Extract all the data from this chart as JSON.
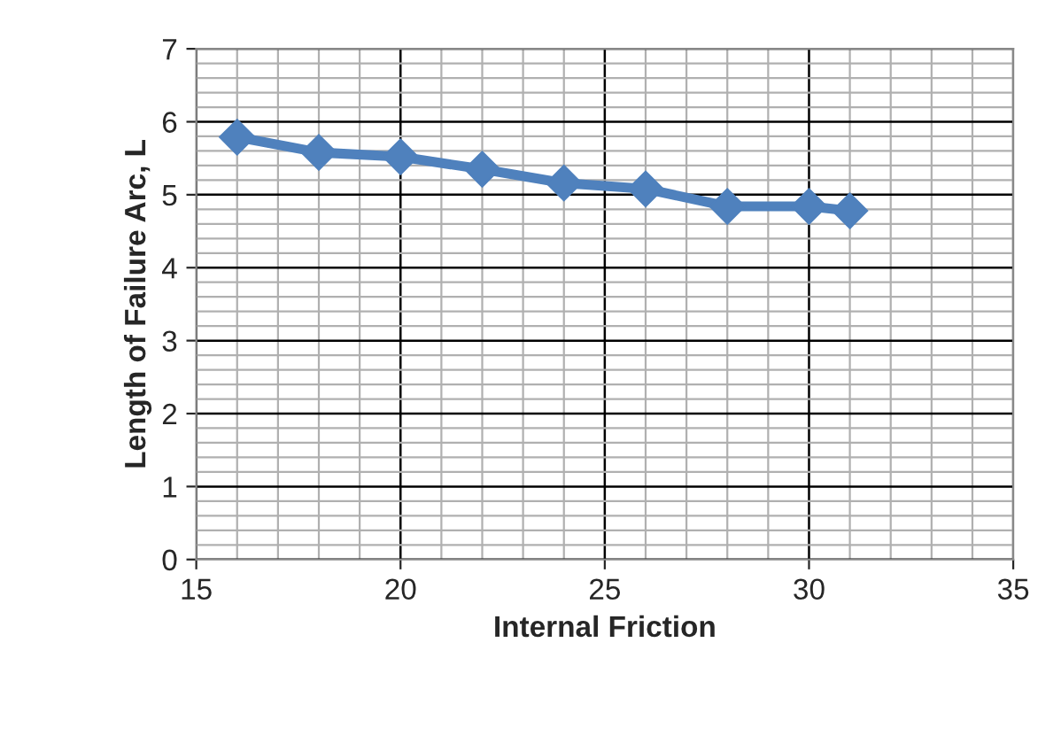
{
  "chart_data": {
    "type": "line",
    "xlabel": "Internal Friction",
    "ylabel": "Length of Failure Arc, L",
    "x": [
      16,
      18,
      20,
      22,
      24,
      26,
      28,
      30,
      31
    ],
    "series": [
      {
        "color": "#4f81bd",
        "values": [
          5.79,
          5.58,
          5.52,
          5.35,
          5.16,
          5.08,
          4.84,
          4.84,
          4.78
        ]
      }
    ],
    "xlim": [
      15,
      35
    ],
    "xticks": [
      15,
      20,
      25,
      30,
      35
    ],
    "ylim": [
      0,
      7
    ],
    "yticks": [
      0,
      1,
      2,
      3,
      4,
      5,
      6,
      7
    ],
    "grid": true,
    "marker": "diamond",
    "line_style": "solid"
  }
}
